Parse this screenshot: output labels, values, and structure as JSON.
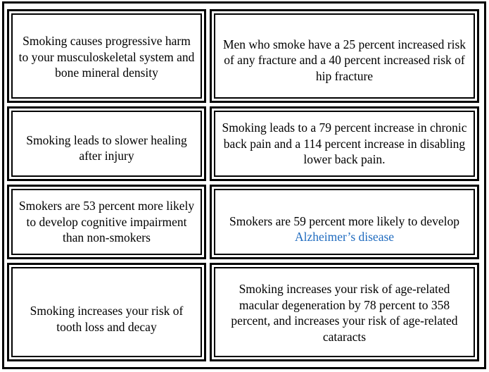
{
  "cells": [
    {
      "text": "Smoking causes progressive harm to your musculoskeletal system and bone mineral density"
    },
    {
      "text": "Men who smoke have a 25 percent increased risk of any fracture and a 40 percent increased risk of hip fracture"
    },
    {
      "text": "Smoking leads to slower healing after injury"
    },
    {
      "text": "Smoking leads to a 79 percent increase in chronic back pain and a 114 percent increase in disabling lower back pain."
    },
    {
      "text": "Smokers are 53 percent more likely to develop cognitive impairment than non-smokers"
    },
    {
      "text_before": "Smokers are 59 percent more likely to develop ",
      "link": "Alzheimer’s disease"
    },
    {
      "text": "Smoking increases your risk of tooth loss and decay"
    },
    {
      "text": "Smoking increases your risk of age-related macular degeneration by 78 percent to 358 percent, and increases your risk of age-related cataracts"
    }
  ],
  "colors": {
    "border": "#000000",
    "link": "#1f6bbf",
    "background": "#ffffff"
  }
}
